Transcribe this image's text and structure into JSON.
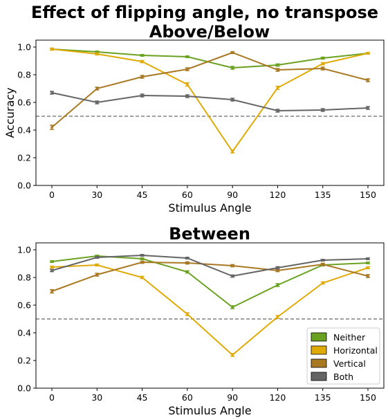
{
  "figure": {
    "title_line1": "Effect of flipping angle, no transpose",
    "title_line2": "Above/Below"
  },
  "colors": {
    "Neither": "#6aa121",
    "Horizontal": "#e0aa06",
    "Vertical": "#a87823",
    "Both": "#646464",
    "chance": "#808080"
  },
  "chart_data": [
    {
      "type": "line",
      "title": "Above/Below",
      "xlabel": "Stimulus Angle",
      "ylabel": "Accuracy",
      "categories": [
        "0",
        "30",
        "45",
        "60",
        "90",
        "120",
        "135",
        "150"
      ],
      "ylim": [
        0,
        1.05
      ],
      "yticks": [
        "0.0",
        "0.2",
        "0.4",
        "0.6",
        "0.8",
        "1.0"
      ],
      "chance_line": 0.5,
      "legend": false,
      "series": [
        {
          "name": "Neither",
          "values": [
            0.985,
            0.965,
            0.94,
            0.93,
            0.85,
            0.87,
            0.92,
            0.955
          ],
          "error": [
            0.007,
            0.006,
            0.006,
            0.006,
            0.01,
            0.008,
            0.007,
            0.006
          ]
        },
        {
          "name": "Horizontal",
          "values": [
            0.985,
            0.95,
            0.895,
            0.73,
            0.245,
            0.705,
            0.88,
            0.955
          ],
          "error": [
            0.007,
            0.007,
            0.008,
            0.012,
            0.01,
            0.012,
            0.008,
            0.006
          ]
        },
        {
          "name": "Vertical",
          "values": [
            0.42,
            0.7,
            0.785,
            0.84,
            0.96,
            0.835,
            0.845,
            0.76
          ],
          "error": [
            0.015,
            0.01,
            0.01,
            0.01,
            0.007,
            0.01,
            0.01,
            0.01
          ]
        },
        {
          "name": "Both",
          "values": [
            0.67,
            0.6,
            0.65,
            0.645,
            0.62,
            0.54,
            0.545,
            0.56
          ],
          "error": [
            0.01,
            0.01,
            0.01,
            0.01,
            0.01,
            0.01,
            0.01,
            0.01
          ]
        }
      ]
    },
    {
      "type": "line",
      "title": "Between",
      "xlabel": "Stimulus Angle",
      "ylabel": "",
      "categories": [
        "0",
        "30",
        "45",
        "60",
        "90",
        "120",
        "135",
        "150"
      ],
      "ylim": [
        0,
        1.05
      ],
      "yticks": [
        "0.0",
        "0.2",
        "0.4",
        "0.6",
        "0.8",
        "1.0"
      ],
      "chance_line": 0.5,
      "legend": true,
      "legend_position": "lower right",
      "series": [
        {
          "name": "Neither",
          "values": [
            0.915,
            0.955,
            0.935,
            0.84,
            0.585,
            0.745,
            0.89,
            0.905
          ],
          "error": [
            0.006,
            0.006,
            0.006,
            0.008,
            0.01,
            0.01,
            0.007,
            0.006
          ]
        },
        {
          "name": "Horizontal",
          "values": [
            0.875,
            0.89,
            0.8,
            0.535,
            0.24,
            0.515,
            0.76,
            0.87
          ],
          "error": [
            0.007,
            0.007,
            0.008,
            0.01,
            0.01,
            0.01,
            0.008,
            0.007
          ]
        },
        {
          "name": "Vertical",
          "values": [
            0.7,
            0.82,
            0.91,
            0.905,
            0.885,
            0.85,
            0.895,
            0.81
          ],
          "error": [
            0.012,
            0.01,
            0.008,
            0.008,
            0.008,
            0.008,
            0.008,
            0.01
          ]
        },
        {
          "name": "Both",
          "values": [
            0.85,
            0.945,
            0.96,
            0.94,
            0.81,
            0.87,
            0.925,
            0.935
          ],
          "error": [
            0.008,
            0.006,
            0.006,
            0.006,
            0.008,
            0.008,
            0.006,
            0.006
          ]
        }
      ]
    }
  ]
}
